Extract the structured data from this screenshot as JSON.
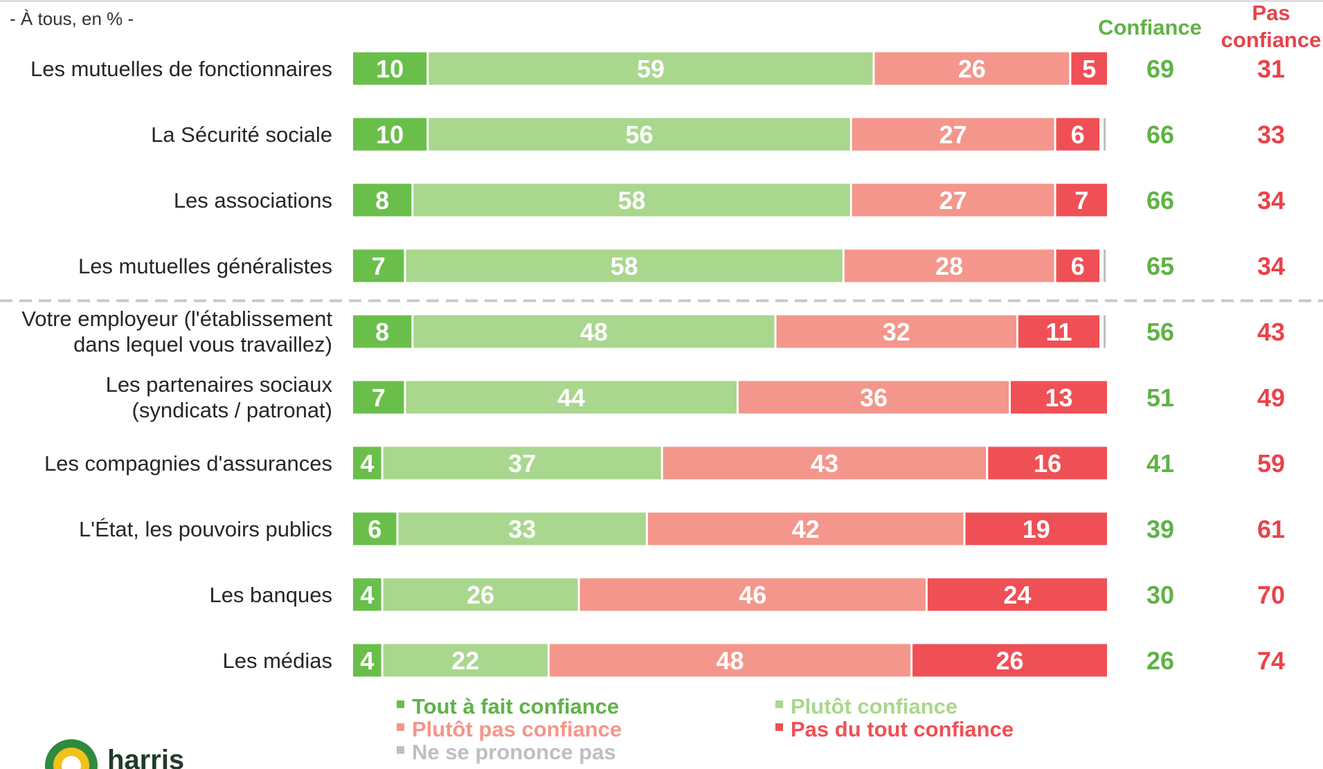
{
  "subtitle": "- À tous, en % -",
  "headers": {
    "confiance": "Confiance",
    "pas_confiance_line1": "Pas",
    "pas_confiance_line2": "confiance"
  },
  "colors": {
    "tout_a_fait": "#6abf4b",
    "plutot": "#a9d78e",
    "plutot_pas": "#f4968b",
    "pas_du_tout": "#ef5055",
    "nsp": "#bfbfbf",
    "confiance_text": "#5fb246",
    "pas_confiance_text": "#e8434a",
    "divider": "#c8c8c8"
  },
  "logo": {
    "text": "harris"
  },
  "chart_data": {
    "type": "bar",
    "orientation": "horizontal-stacked-100",
    "subtitle": "- À tous, en % -",
    "categories": [
      [
        "Les mutuelles de fonctionnaires"
      ],
      [
        "La Sécurité sociale"
      ],
      [
        "Les associations"
      ],
      [
        "Les mutuelles généralistes"
      ],
      [
        "Votre employeur (l'établissement",
        "dans lequel vous travaillez)"
      ],
      [
        "Les partenaires sociaux",
        "(syndicats / patronat)"
      ],
      [
        "Les compagnies d'assurances"
      ],
      [
        "L'État, les pouvoirs publics"
      ],
      [
        "Les banques"
      ],
      [
        "Les médias"
      ]
    ],
    "series": [
      {
        "name": "Tout à fait confiance",
        "values": [
          10,
          10,
          8,
          7,
          8,
          7,
          4,
          6,
          4,
          4
        ]
      },
      {
        "name": "Plutôt confiance",
        "values": [
          59,
          56,
          58,
          58,
          48,
          44,
          37,
          33,
          26,
          22
        ]
      },
      {
        "name": "Plutôt pas confiance",
        "values": [
          26,
          27,
          27,
          28,
          32,
          36,
          43,
          42,
          46,
          48
        ]
      },
      {
        "name": "Pas du tout confiance",
        "values": [
          5,
          6,
          7,
          6,
          11,
          13,
          16,
          19,
          24,
          26
        ]
      },
      {
        "name": "Ne se prononce pas",
        "values": [
          0,
          1,
          0,
          1,
          1,
          0,
          0,
          0,
          0,
          0
        ]
      }
    ],
    "totals": {
      "confiance": [
        69,
        66,
        66,
        65,
        56,
        51,
        41,
        39,
        30,
        26
      ],
      "pas_confiance": [
        31,
        33,
        34,
        34,
        43,
        49,
        59,
        61,
        70,
        74
      ]
    },
    "divider_after_index": 3,
    "legend": {
      "placement": "bottom",
      "items": [
        "Tout à fait confiance",
        "Plutôt confiance",
        "Plutôt pas confiance",
        "Pas du tout confiance",
        "Ne se prononce pas"
      ]
    },
    "xlim": [
      0,
      100
    ]
  }
}
